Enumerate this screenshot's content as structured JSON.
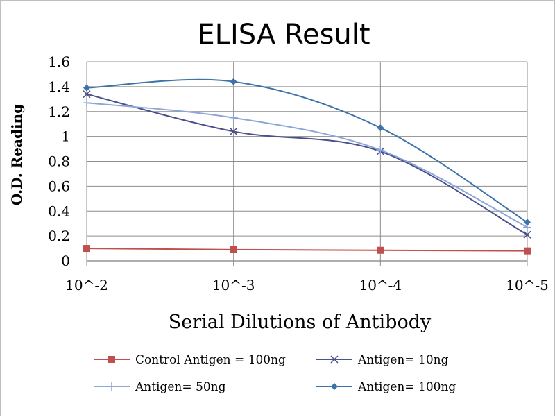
{
  "chart_data": {
    "type": "line",
    "title": "ELISA Result",
    "xlabel": "Serial Dilutions  of Antibody",
    "ylabel": "O.D. Reading",
    "categories": [
      "10^-2",
      "10^-3",
      "10^-4",
      "10^-5"
    ],
    "ylim": [
      0,
      1.6
    ],
    "yticks": [
      "0",
      "0.2",
      "0.4",
      "0.6",
      "0.8",
      "1",
      "1.2",
      "1.4",
      "1.6"
    ],
    "grid": true,
    "legend_position": "bottom",
    "series": [
      {
        "name": "Control Antigen = 100ng",
        "values": [
          0.1,
          0.09,
          0.085,
          0.08
        ],
        "color": "#C0504D",
        "marker": "square",
        "smooth": false
      },
      {
        "name": "Antigen= 10ng",
        "values": [
          1.34,
          1.04,
          0.88,
          0.21
        ],
        "color": "#4B4F8C",
        "marker": "x",
        "smooth": true
      },
      {
        "name": "Antigen= 50ng",
        "values": [
          1.27,
          1.15,
          0.89,
          0.27
        ],
        "color": "#8CA6D9",
        "marker": "plus",
        "smooth": true
      },
      {
        "name": "Antigen= 100ng",
        "values": [
          1.39,
          1.44,
          1.07,
          0.31
        ],
        "color": "#3D74A8",
        "marker": "diamond",
        "smooth": true
      }
    ]
  }
}
